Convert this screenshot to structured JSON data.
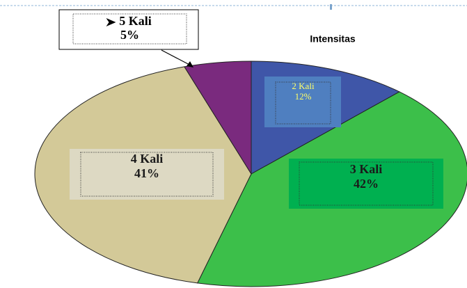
{
  "chart_data": {
    "type": "pie",
    "title": "Intensitas",
    "categories": [
      "2 Kali",
      "3 Kali",
      "4 Kali",
      "5 Kali"
    ],
    "values": [
      12,
      42,
      41,
      5
    ],
    "value_labels": [
      "12%",
      "42%",
      "41%",
      "5%"
    ],
    "colors": [
      "#3f56a8",
      "#3cbf4a",
      "#d3c998",
      "#7a2a7e"
    ]
  }
}
